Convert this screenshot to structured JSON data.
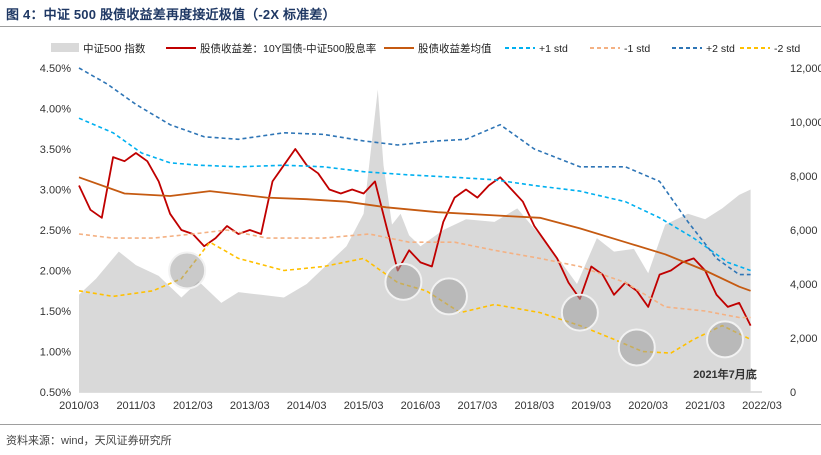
{
  "title": "图 4：中证 500 股债收益差再度接近极值（-2X 标准差）",
  "source": "资料来源：wind，天风证券研究所",
  "chart_data": {
    "type": "line",
    "x_ticks": [
      "2010/03",
      "2011/03",
      "2012/03",
      "2013/03",
      "2014/03",
      "2015/03",
      "2016/03",
      "2017/03",
      "2018/03",
      "2019/03",
      "2020/03",
      "2021/03",
      "2022/03"
    ],
    "y_left": {
      "min": 0.5,
      "max": 4.5,
      "ticks": [
        "0.50%",
        "1.00%",
        "1.50%",
        "2.00%",
        "2.50%",
        "3.00%",
        "3.50%",
        "4.00%",
        "4.50%"
      ]
    },
    "y_right": {
      "min": 0,
      "max": 12000,
      "ticks": [
        "0",
        "2,000",
        "4,000",
        "6,000",
        "8,000",
        "10,000",
        "12,000"
      ]
    },
    "annotation": "2021年7月底",
    "series": [
      {
        "name": "中证500 指数",
        "axis": "right",
        "kind": "area",
        "color": "#d9d9d9",
        "x": [
          2010.2,
          2010.5,
          2010.9,
          2011.2,
          2011.6,
          2012.0,
          2012.3,
          2012.7,
          2013.0,
          2013.4,
          2013.8,
          2014.2,
          2014.6,
          2014.9,
          2015.2,
          2015.45,
          2015.55,
          2015.7,
          2015.85,
          2016.0,
          2016.2,
          2016.6,
          2017.0,
          2017.5,
          2017.9,
          2018.1,
          2018.5,
          2018.95,
          2019.3,
          2019.6,
          2019.95,
          2020.2,
          2020.5,
          2020.9,
          2021.2,
          2021.5,
          2021.8,
          2022.0
        ],
        "values": [
          3600,
          4200,
          5200,
          4700,
          4300,
          3500,
          4100,
          3300,
          3700,
          3600,
          3500,
          4000,
          4800,
          5400,
          6600,
          11200,
          8400,
          6200,
          6600,
          5800,
          5400,
          6000,
          6400,
          6300,
          6800,
          6300,
          5300,
          4000,
          5700,
          5200,
          5300,
          4400,
          6200,
          6600,
          6400,
          6800,
          7300,
          7500
        ]
      },
      {
        "name": "股债收益差：10Y国债-中证500股息率",
        "axis": "left",
        "color": "#c00000",
        "x": [
          2010.2,
          2010.4,
          2010.6,
          2010.8,
          2011.0,
          2011.2,
          2011.4,
          2011.6,
          2011.8,
          2012.0,
          2012.2,
          2012.4,
          2012.6,
          2012.8,
          2013.0,
          2013.2,
          2013.4,
          2013.6,
          2013.8,
          2014.0,
          2014.2,
          2014.4,
          2014.6,
          2014.8,
          2015.0,
          2015.2,
          2015.4,
          2015.6,
          2015.8,
          2016.0,
          2016.2,
          2016.4,
          2016.6,
          2016.8,
          2017.0,
          2017.2,
          2017.4,
          2017.6,
          2017.8,
          2018.0,
          2018.2,
          2018.4,
          2018.6,
          2018.8,
          2019.0,
          2019.2,
          2019.4,
          2019.6,
          2019.8,
          2020.0,
          2020.2,
          2020.4,
          2020.6,
          2020.8,
          2021.0,
          2021.2,
          2021.4,
          2021.6,
          2021.8,
          2022.0
        ],
        "values": [
          3.05,
          2.75,
          2.65,
          3.4,
          3.35,
          3.45,
          3.35,
          3.1,
          2.7,
          2.5,
          2.45,
          2.3,
          2.4,
          2.55,
          2.45,
          2.5,
          2.45,
          3.1,
          3.3,
          3.5,
          3.3,
          3.2,
          3.0,
          2.95,
          3.0,
          2.95,
          3.1,
          2.55,
          2.0,
          2.25,
          2.1,
          2.05,
          2.6,
          2.9,
          3.0,
          2.9,
          3.05,
          3.15,
          3.0,
          2.85,
          2.55,
          2.35,
          2.15,
          1.85,
          1.65,
          2.05,
          1.95,
          1.7,
          1.85,
          1.75,
          1.55,
          1.95,
          2.0,
          2.1,
          2.15,
          2.0,
          1.7,
          1.55,
          1.6,
          1.32
        ]
      },
      {
        "name": "股债收益差均值",
        "axis": "left",
        "color": "#c55a11",
        "x": [
          2010.2,
          2011.0,
          2011.8,
          2012.5,
          2013.5,
          2014.2,
          2014.9,
          2015.6,
          2016.5,
          2017.5,
          2018.3,
          2019.0,
          2019.8,
          2020.5,
          2021.2,
          2021.8,
          2022.0
        ],
        "values": [
          3.15,
          2.95,
          2.92,
          2.98,
          2.9,
          2.88,
          2.85,
          2.78,
          2.72,
          2.68,
          2.65,
          2.52,
          2.35,
          2.2,
          2.0,
          1.8,
          1.75
        ]
      },
      {
        "name": "+1 std",
        "axis": "left",
        "color": "#00b0f0",
        "dash": "4,3",
        "x": [
          2010.2,
          2010.8,
          2011.3,
          2011.8,
          2012.3,
          2013.0,
          2013.8,
          2014.5,
          2015.2,
          2016.0,
          2016.8,
          2017.5,
          2018.2,
          2019.0,
          2019.8,
          2020.4,
          2021.0,
          2021.6,
          2022.0
        ],
        "values": [
          3.88,
          3.7,
          3.45,
          3.33,
          3.3,
          3.28,
          3.3,
          3.28,
          3.22,
          3.18,
          3.15,
          3.12,
          3.05,
          2.98,
          2.85,
          2.65,
          2.4,
          2.1,
          2.0
        ]
      },
      {
        "name": "-1 std",
        "axis": "left",
        "color": "#f4b183",
        "dash": "4,3",
        "x": [
          2010.2,
          2010.8,
          2011.5,
          2012.2,
          2012.8,
          2013.5,
          2014.5,
          2015.3,
          2016.0,
          2016.8,
          2017.5,
          2018.3,
          2019.0,
          2019.8,
          2020.5,
          2021.2,
          2021.8,
          2022.0
        ],
        "values": [
          2.45,
          2.4,
          2.4,
          2.45,
          2.5,
          2.4,
          2.4,
          2.45,
          2.35,
          2.35,
          2.25,
          2.15,
          2.05,
          1.85,
          1.55,
          1.5,
          1.42,
          1.42
        ]
      },
      {
        "name": "+2 std",
        "axis": "left",
        "color": "#2e75b6",
        "dash": "4,3",
        "x": [
          2010.2,
          2010.7,
          2011.2,
          2011.8,
          2012.4,
          2013.0,
          2013.8,
          2014.5,
          2015.2,
          2015.8,
          2016.5,
          2017.0,
          2017.6,
          2018.2,
          2019.0,
          2019.8,
          2020.4,
          2020.9,
          2021.4,
          2021.8,
          2022.0
        ],
        "values": [
          4.5,
          4.3,
          4.05,
          3.8,
          3.65,
          3.62,
          3.7,
          3.68,
          3.6,
          3.55,
          3.6,
          3.62,
          3.8,
          3.5,
          3.28,
          3.28,
          3.1,
          2.6,
          2.15,
          1.95,
          1.95
        ]
      },
      {
        "name": "-2 std",
        "axis": "left",
        "color": "#ffc000",
        "dash": "4,3",
        "x": [
          2010.2,
          2010.8,
          2011.5,
          2012.0,
          2012.5,
          2013.0,
          2013.8,
          2014.5,
          2015.2,
          2015.8,
          2016.3,
          2016.9,
          2017.5,
          2018.3,
          2019.0,
          2019.6,
          2020.1,
          2020.6,
          2021.0,
          2021.5,
          2022.0
        ],
        "values": [
          1.75,
          1.68,
          1.75,
          1.9,
          2.35,
          2.15,
          2.0,
          2.05,
          2.15,
          1.85,
          1.75,
          1.48,
          1.58,
          1.48,
          1.32,
          1.15,
          1.0,
          0.98,
          1.15,
          1.32,
          1.15
        ]
      }
    ]
  }
}
